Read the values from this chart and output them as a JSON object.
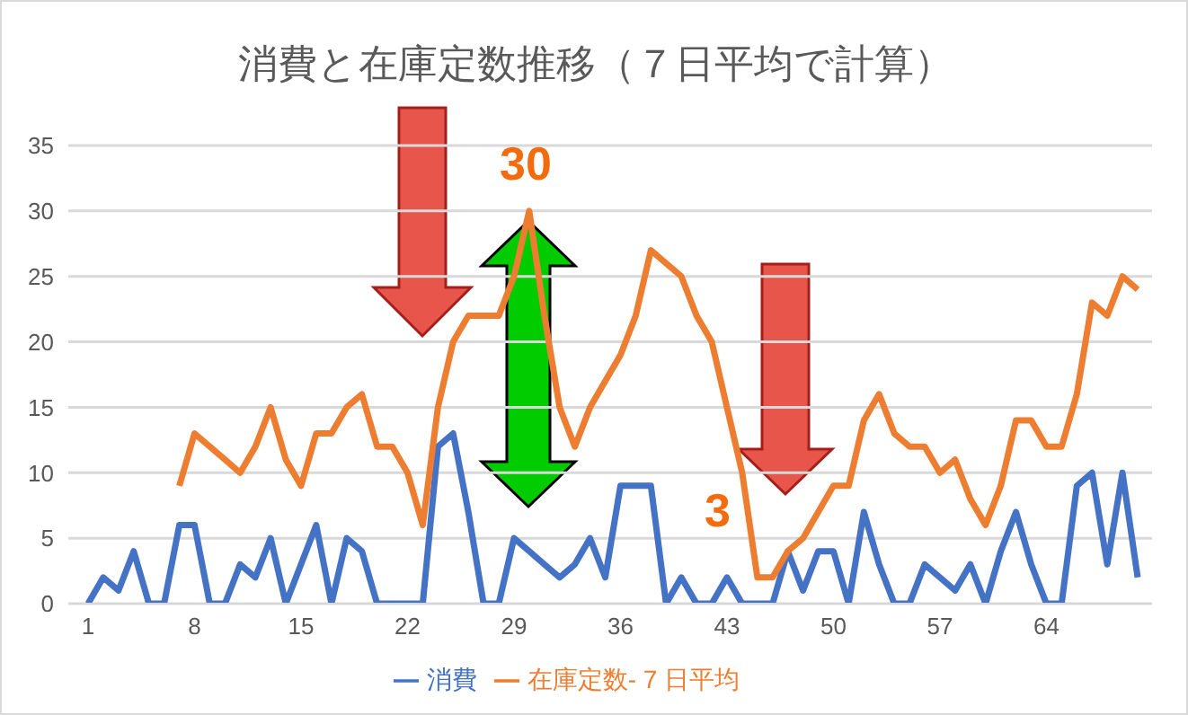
{
  "chart_data": {
    "type": "line",
    "title": "消費と在庫定数推移（７日平均で計算）",
    "categories": [
      "1",
      null,
      null,
      null,
      null,
      null,
      null,
      "8",
      null,
      null,
      null,
      null,
      null,
      null,
      "15",
      null,
      null,
      null,
      null,
      null,
      null,
      "22",
      null,
      null,
      null,
      null,
      null,
      null,
      "29",
      null,
      null,
      null,
      null,
      null,
      null,
      "36",
      null,
      null,
      null,
      null,
      null,
      null,
      "43",
      null,
      null,
      null,
      null,
      null,
      null,
      "50",
      null,
      null,
      null,
      null,
      null,
      null,
      "57",
      null,
      null,
      null,
      null,
      null,
      null,
      "64",
      null,
      null,
      null,
      null,
      null,
      null
    ],
    "series": [
      {
        "name": "消費",
        "color": "#4472c4",
        "values": [
          0,
          2,
          1,
          4,
          0,
          0,
          6,
          6,
          0,
          0,
          3,
          2,
          5,
          0,
          3,
          6,
          0,
          5,
          4,
          0,
          0,
          0,
          0,
          12,
          13,
          7,
          0,
          0,
          5,
          4,
          3,
          2,
          3,
          5,
          2,
          9,
          9,
          9,
          0,
          2,
          0,
          0,
          2,
          0,
          0,
          0,
          4,
          1,
          4,
          4,
          0,
          7,
          3,
          0,
          0,
          3,
          2,
          1,
          3,
          0,
          4,
          7,
          3,
          0,
          0,
          9,
          10,
          3,
          10,
          2
        ]
      },
      {
        "name": "在庫定数- 7 日平均",
        "color": "#ed7d31",
        "values": [
          null,
          null,
          null,
          null,
          null,
          null,
          9,
          13,
          12,
          11,
          10,
          12,
          15,
          11,
          9,
          13,
          13,
          15,
          16,
          12,
          12,
          10,
          6,
          15,
          20,
          22,
          22,
          22,
          25,
          30,
          22,
          15,
          12,
          15,
          17,
          19,
          22,
          27,
          26,
          25,
          22,
          20,
          15,
          10,
          2,
          2,
          4,
          5,
          7,
          9,
          9,
          14,
          16,
          13,
          12,
          12,
          10,
          11,
          8,
          6,
          9,
          14,
          14,
          12,
          12,
          16,
          23,
          22,
          25,
          24
        ]
      }
    ],
    "ylim": [
      0,
      35
    ],
    "yticks": [
      0,
      5,
      10,
      15,
      20,
      25,
      30,
      35
    ],
    "grid": "y",
    "legend": "bottom",
    "marker": "none",
    "line_style": "solid",
    "annotations": [
      "30",
      "3"
    ]
  }
}
